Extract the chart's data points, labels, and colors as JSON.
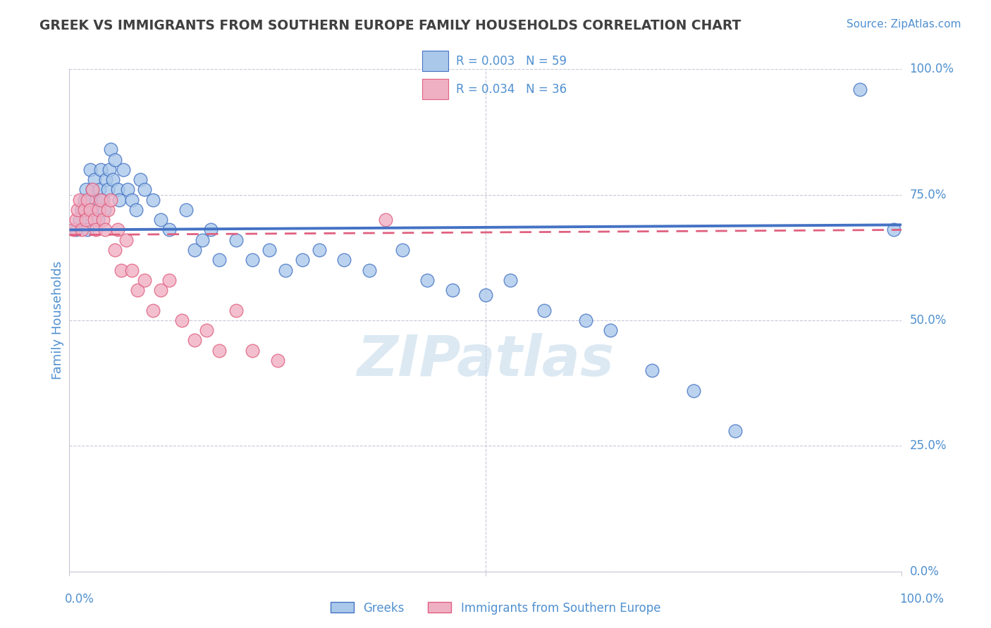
{
  "title": "GREEK VS IMMIGRANTS FROM SOUTHERN EUROPE FAMILY HOUSEHOLDS CORRELATION CHART",
  "source_text": "Source: ZipAtlas.com",
  "ylabel": "Family Households",
  "watermark": "ZIPatlas",
  "legend_blue_r": "R = 0.003",
  "legend_blue_n": "N = 59",
  "legend_pink_r": "R = 0.034",
  "legend_pink_n": "N = 36",
  "blue_color": "#aac8ea",
  "pink_color": "#f0b0c4",
  "blue_line_color": "#4472c4",
  "pink_line_color": "#e06080",
  "title_color": "#404040",
  "axis_color": "#5090d0",
  "grid_color": "#c8c8d8",
  "watermark_color": "#c0d8ea",
  "background_color": "#ffffff",
  "xlim": [
    0.0,
    1.0
  ],
  "ylim": [
    0.0,
    1.0
  ],
  "yticks": [
    0.0,
    0.25,
    0.5,
    0.75,
    1.0
  ],
  "ytick_labels_right": [
    "0.0%",
    "25.0%",
    "50.0%",
    "75.0%",
    "100.0%"
  ],
  "blue_scatter_x": [
    0.008,
    0.012,
    0.015,
    0.018,
    0.02,
    0.022,
    0.025,
    0.025,
    0.028,
    0.03,
    0.032,
    0.034,
    0.036,
    0.038,
    0.04,
    0.042,
    0.044,
    0.046,
    0.048,
    0.05,
    0.052,
    0.055,
    0.058,
    0.06,
    0.065,
    0.07,
    0.075,
    0.08,
    0.085,
    0.09,
    0.1,
    0.11,
    0.12,
    0.14,
    0.15,
    0.16,
    0.17,
    0.18,
    0.2,
    0.22,
    0.24,
    0.26,
    0.28,
    0.3,
    0.33,
    0.36,
    0.4,
    0.43,
    0.46,
    0.5,
    0.53,
    0.57,
    0.62,
    0.65,
    0.7,
    0.75,
    0.8,
    0.95,
    0.99
  ],
  "blue_scatter_y": [
    0.68,
    0.7,
    0.72,
    0.74,
    0.76,
    0.68,
    0.8,
    0.72,
    0.76,
    0.78,
    0.74,
    0.7,
    0.76,
    0.8,
    0.74,
    0.72,
    0.78,
    0.76,
    0.8,
    0.84,
    0.78,
    0.82,
    0.76,
    0.74,
    0.8,
    0.76,
    0.74,
    0.72,
    0.78,
    0.76,
    0.74,
    0.7,
    0.68,
    0.72,
    0.64,
    0.66,
    0.68,
    0.62,
    0.66,
    0.62,
    0.64,
    0.6,
    0.62,
    0.64,
    0.62,
    0.6,
    0.64,
    0.58,
    0.56,
    0.55,
    0.58,
    0.52,
    0.5,
    0.48,
    0.4,
    0.36,
    0.28,
    0.96,
    0.68
  ],
  "pink_scatter_x": [
    0.005,
    0.008,
    0.01,
    0.012,
    0.015,
    0.018,
    0.02,
    0.022,
    0.025,
    0.028,
    0.03,
    0.032,
    0.035,
    0.038,
    0.04,
    0.043,
    0.046,
    0.05,
    0.055,
    0.058,
    0.062,
    0.068,
    0.075,
    0.082,
    0.09,
    0.1,
    0.11,
    0.12,
    0.135,
    0.15,
    0.165,
    0.18,
    0.2,
    0.22,
    0.25,
    0.38
  ],
  "pink_scatter_y": [
    0.68,
    0.7,
    0.72,
    0.74,
    0.68,
    0.72,
    0.7,
    0.74,
    0.72,
    0.76,
    0.7,
    0.68,
    0.72,
    0.74,
    0.7,
    0.68,
    0.72,
    0.74,
    0.64,
    0.68,
    0.6,
    0.66,
    0.6,
    0.56,
    0.58,
    0.52,
    0.56,
    0.58,
    0.5,
    0.46,
    0.48,
    0.44,
    0.52,
    0.44,
    0.42,
    0.7
  ],
  "blue_trend_x": [
    0.0,
    1.0
  ],
  "blue_trend_y": [
    0.68,
    0.69
  ],
  "pink_trend_x": [
    0.0,
    1.0
  ],
  "pink_trend_y": [
    0.67,
    0.68
  ],
  "xtick_positions": [
    0.0,
    0.5
  ],
  "xlabel_left_x": 0.08,
  "xlabel_left_y": 0.04,
  "xlabel_right_x": 0.93,
  "xlabel_right_y": 0.04
}
